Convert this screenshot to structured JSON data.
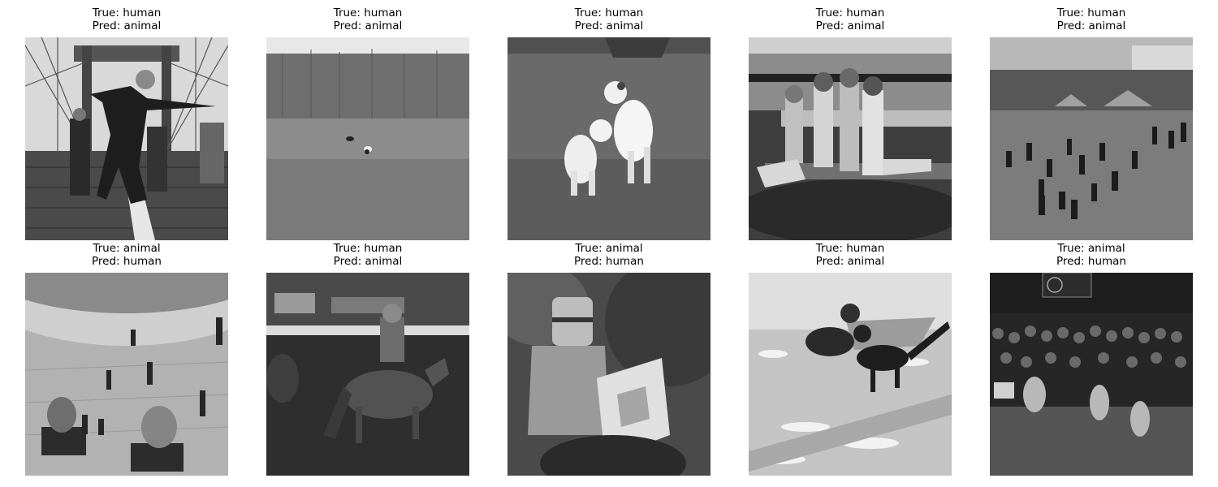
{
  "samples": [
    {
      "true_label": "True: human",
      "pred_label": "Pred: animal",
      "scene": "person-dancing-on-bridge"
    },
    {
      "true_label": "True: human",
      "pred_label": "Pred: animal",
      "scene": "dogs-far-in-field"
    },
    {
      "true_label": "True: human",
      "pred_label": "Pred: animal",
      "scene": "two-dogs-playing"
    },
    {
      "true_label": "True: human",
      "pred_label": "Pred: animal",
      "scene": "children-sitting-on-floor"
    },
    {
      "true_label": "True: human",
      "pred_label": "Pred: animal",
      "scene": "crowd-in-park"
    },
    {
      "true_label": "True: animal",
      "pred_label": "Pred: human",
      "scene": "plaza-aerial-view"
    },
    {
      "true_label": "True: human",
      "pred_label": "Pred: animal",
      "scene": "rodeo-horse-rider"
    },
    {
      "true_label": "True: animal",
      "pred_label": "Pred: human",
      "scene": "armored-knight-on-horse"
    },
    {
      "true_label": "True: human",
      "pred_label": "Pred: animal",
      "scene": "dogs-in-snow"
    },
    {
      "true_label": "True: animal",
      "pred_label": "Pred: human",
      "scene": "dog-show-audience"
    }
  ]
}
